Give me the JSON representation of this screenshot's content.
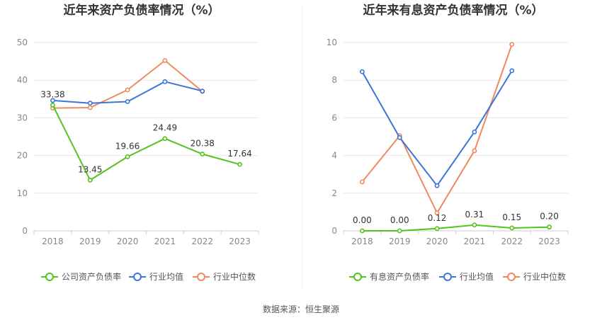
{
  "source_label": "数据来源：恒生聚源",
  "chart_data": [
    {
      "type": "line",
      "title": "近年来资产负债率情况（%）",
      "categories": [
        "2018",
        "2019",
        "2020",
        "2021",
        "2022",
        "2023"
      ],
      "ylim": [
        0,
        50
      ],
      "yticks": [
        0,
        10,
        20,
        30,
        40,
        50
      ],
      "grid": true,
      "legend_position": "bottom",
      "series": [
        {
          "name": "公司资产负债率",
          "color": "#52c41a",
          "values": [
            33.38,
            13.45,
            19.66,
            24.49,
            20.38,
            17.64
          ],
          "labels": [
            "33.38",
            "13.45",
            "19.66",
            "24.49",
            "20.38",
            "17.64"
          ]
        },
        {
          "name": "行业均值",
          "color": "#3a75d9",
          "values": [
            34.6,
            33.9,
            34.3,
            39.6,
            37.1,
            null
          ]
        },
        {
          "name": "行业中位数",
          "color": "#f08a5d",
          "values": [
            32.6,
            32.7,
            37.4,
            45.2,
            37.0,
            null
          ]
        }
      ]
    },
    {
      "type": "line",
      "title": "近年来有息资产负债率情况（%）",
      "categories": [
        "2018",
        "2019",
        "2020",
        "2021",
        "2022",
        "2023"
      ],
      "ylim": [
        0,
        10
      ],
      "yticks": [
        0,
        2,
        4,
        6,
        8,
        10
      ],
      "grid": true,
      "legend_position": "bottom",
      "series": [
        {
          "name": "有息资产负债率",
          "color": "#52c41a",
          "values": [
            0.0,
            0.0,
            0.12,
            0.31,
            0.15,
            0.2
          ],
          "labels": [
            "0.00",
            "0.00",
            "0.12",
            "0.31",
            "0.15",
            "0.20"
          ]
        },
        {
          "name": "行业均值",
          "color": "#3a75d9",
          "values": [
            8.45,
            4.95,
            2.4,
            5.25,
            8.5,
            null
          ]
        },
        {
          "name": "行业中位数",
          "color": "#f08a5d",
          "values": [
            2.6,
            5.05,
            0.95,
            4.25,
            9.9,
            null
          ]
        }
      ]
    }
  ]
}
